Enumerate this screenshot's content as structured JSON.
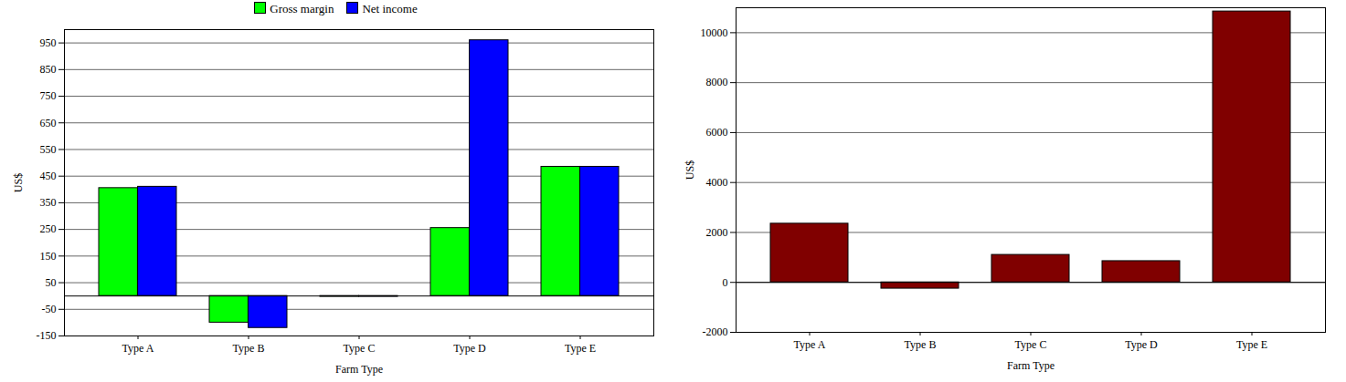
{
  "chart_data": [
    {
      "type": "bar",
      "x_label": "Farm Type",
      "y_label": "US$",
      "categories": [
        "Type A",
        "Type B",
        "Type C",
        "Type D",
        "Type E"
      ],
      "series": [
        {
          "name": "Gross margin",
          "color": "#00ff00",
          "values": [
            405,
            -100,
            -3,
            255,
            485
          ]
        },
        {
          "name": "Net income",
          "color": "#0000ff",
          "values": [
            410,
            -120,
            -3,
            960,
            485
          ]
        }
      ],
      "ylim": [
        -150,
        1000
      ],
      "yticks": [
        -150,
        -50,
        50,
        150,
        250,
        350,
        450,
        550,
        650,
        750,
        850,
        950
      ],
      "grid": true,
      "legend": "top"
    },
    {
      "type": "bar",
      "x_label": "Farm Type",
      "y_label": "US$",
      "categories": [
        "Type A",
        "Type B",
        "Type C",
        "Type D",
        "Type E"
      ],
      "values": [
        2350,
        -250,
        1100,
        850,
        10850
      ],
      "color": "#800000",
      "ylim": [
        -2000,
        11000
      ],
      "yticks": [
        -2000,
        0,
        2000,
        4000,
        6000,
        8000,
        10000
      ],
      "grid": true
    }
  ]
}
